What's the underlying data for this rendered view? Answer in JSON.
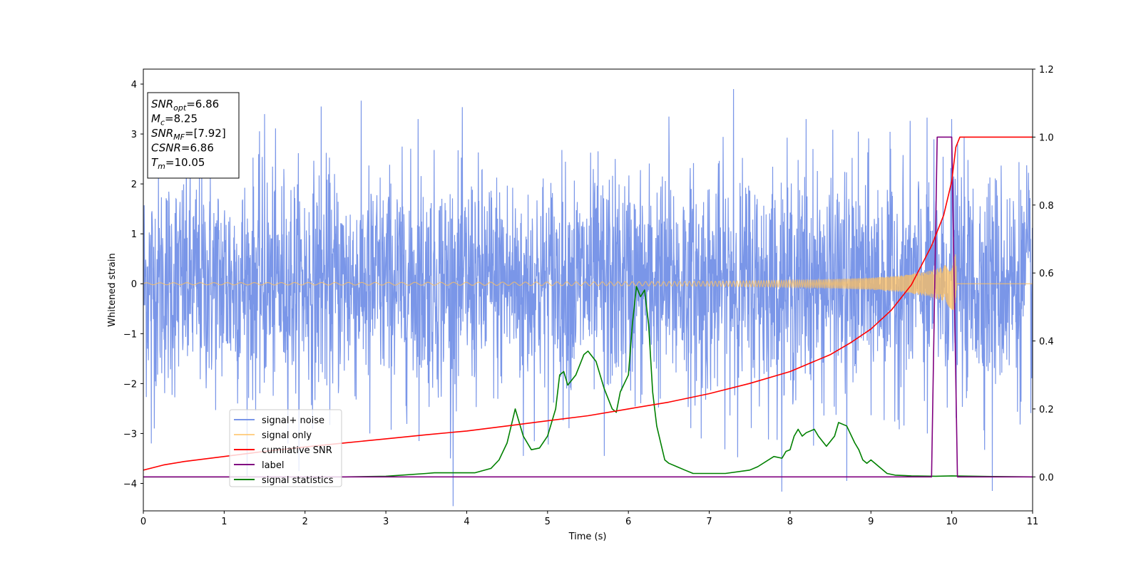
{
  "chart_data": {
    "type": "line",
    "title": "",
    "xlabel": "Time (s)",
    "ylabel": "Whitened strain",
    "xlim": [
      0,
      11
    ],
    "ylim_left": [
      -4.55,
      4.3
    ],
    "ylim_right": [
      -0.1,
      1.2
    ],
    "x_ticks": [
      "0",
      "1",
      "2",
      "3",
      "4",
      "5",
      "6",
      "7",
      "8",
      "9",
      "10",
      "11"
    ],
    "y_left_ticks": [
      "4",
      "3",
      "2",
      "1",
      "0",
      "−1",
      "−2",
      "−3",
      "−4"
    ],
    "y_left_tick_values": [
      4,
      3,
      2,
      1,
      0,
      -1,
      -2,
      -3,
      -4
    ],
    "y_right_ticks": [
      "1.2",
      "1.0",
      "0.8",
      "0.6",
      "0.4",
      "0.2",
      "0.0"
    ],
    "y_right_tick_values": [
      1.2,
      1.0,
      0.8,
      0.6,
      0.4,
      0.2,
      0.0
    ],
    "grid": false,
    "legend_position": "lower-left",
    "info_box": {
      "lines": [
        {
          "main": "SNR",
          "sub": "opt",
          "value": "=6.86"
        },
        {
          "main": "M",
          "sub": "c",
          "value": "=8.25"
        },
        {
          "main": "SNR",
          "sub": "MF",
          "value": "=[7.92]"
        },
        {
          "main": "CSNR",
          "sub": "",
          "value": "=6.86"
        },
        {
          "main": "T",
          "sub": "m",
          "value": "=10.05"
        }
      ]
    },
    "series": [
      {
        "name": "signal+ noise",
        "color": "#7a96e8",
        "axis": "left",
        "description_band": {
          "x": [
            0,
            11
          ],
          "typical_min": -2.3,
          "typical_max": 2.6
        },
        "peaks": [
          {
            "x": 1.5,
            "y": 3.4
          },
          {
            "x": 2.2,
            "y": 3.55
          },
          {
            "x": 3.4,
            "y": 3.3
          },
          {
            "x": 4.7,
            "y": 3.35
          },
          {
            "x": 6.5,
            "y": 3.35
          },
          {
            "x": 7.3,
            "y": 3.9
          },
          {
            "x": 8.2,
            "y": 3.3
          },
          {
            "x": 10.0,
            "y": 3.3
          }
        ],
        "troughs": [
          {
            "x": 0.1,
            "y": -3.2
          },
          {
            "x": 2.8,
            "y": -3.0
          },
          {
            "x": 3.8,
            "y": -3.5
          },
          {
            "x": 4.7,
            "y": -3.45
          },
          {
            "x": 5.7,
            "y": -3.45
          },
          {
            "x": 6.9,
            "y": -3.1
          },
          {
            "x": 8.7,
            "y": -3.95
          },
          {
            "x": 9.7,
            "y": -3.0
          },
          {
            "x": 10.5,
            "y": -4.15
          }
        ]
      },
      {
        "name": "signal only",
        "color": "#ffc060",
        "axis": "left",
        "envelope": {
          "x": [
            0,
            2,
            4,
            6,
            7,
            8,
            8.5,
            9,
            9.4,
            9.7,
            9.9,
            10.05,
            10.06,
            11
          ],
          "amp": [
            0.02,
            0.025,
            0.03,
            0.04,
            0.05,
            0.07,
            0.09,
            0.12,
            0.17,
            0.25,
            0.35,
            0.6,
            0,
            0
          ]
        }
      },
      {
        "name": "cumilative SNR",
        "color": "#ff0000",
        "axis": "right",
        "x": [
          0,
          0.25,
          0.5,
          1,
          1.5,
          2,
          2.5,
          3,
          3.5,
          4,
          4.5,
          5,
          5.5,
          6,
          6.5,
          7,
          7.5,
          8,
          8.25,
          8.5,
          8.75,
          9,
          9.25,
          9.5,
          9.75,
          9.9,
          10.0,
          10.05,
          10.1,
          11
        ],
        "values": [
          0.02,
          0.035,
          0.045,
          0.06,
          0.075,
          0.088,
          0.1,
          0.112,
          0.124,
          0.135,
          0.15,
          0.165,
          0.18,
          0.2,
          0.22,
          0.245,
          0.275,
          0.31,
          0.335,
          0.36,
          0.395,
          0.435,
          0.49,
          0.565,
          0.68,
          0.77,
          0.87,
          0.97,
          1.0,
          1.0
        ]
      },
      {
        "name": "label",
        "color": "#800080",
        "axis": "right",
        "x": [
          0,
          9.75,
          9.82,
          10.0,
          10.07,
          11
        ],
        "values": [
          0.0,
          0.0,
          1.0,
          1.0,
          0.0,
          0.0
        ]
      },
      {
        "name": "signal statistics",
        "color": "#008000",
        "axis": "right",
        "x": [
          0,
          0.5,
          1,
          1.5,
          2,
          2.5,
          3,
          3.5,
          3.6,
          4.0,
          4.1,
          4.3,
          4.4,
          4.5,
          4.55,
          4.6,
          4.65,
          4.7,
          4.8,
          4.9,
          5.0,
          5.1,
          5.15,
          5.2,
          5.25,
          5.35,
          5.45,
          5.5,
          5.6,
          5.7,
          5.8,
          5.85,
          5.9,
          6.0,
          6.05,
          6.1,
          6.15,
          6.2,
          6.25,
          6.3,
          6.35,
          6.4,
          6.45,
          6.5,
          6.6,
          6.7,
          6.8,
          7.0,
          7.2,
          7.5,
          7.6,
          7.8,
          7.9,
          7.95,
          8.0,
          8.05,
          8.1,
          8.15,
          8.2,
          8.3,
          8.35,
          8.45,
          8.55,
          8.6,
          8.7,
          8.8,
          8.85,
          8.9,
          8.95,
          9.0,
          9.1,
          9.2,
          9.3,
          9.5,
          9.8,
          10.0,
          10.5,
          11
        ],
        "values": [
          0.0,
          0.0,
          0.0,
          0.0,
          0.0,
          0.0,
          0.002,
          0.01,
          0.012,
          0.012,
          0.012,
          0.025,
          0.05,
          0.1,
          0.15,
          0.2,
          0.16,
          0.12,
          0.08,
          0.085,
          0.12,
          0.2,
          0.3,
          0.31,
          0.27,
          0.3,
          0.36,
          0.37,
          0.34,
          0.26,
          0.2,
          0.19,
          0.25,
          0.3,
          0.45,
          0.56,
          0.53,
          0.55,
          0.45,
          0.25,
          0.15,
          0.1,
          0.05,
          0.04,
          0.03,
          0.02,
          0.01,
          0.01,
          0.01,
          0.02,
          0.03,
          0.06,
          0.055,
          0.075,
          0.08,
          0.12,
          0.14,
          0.12,
          0.13,
          0.14,
          0.12,
          0.09,
          0.12,
          0.16,
          0.15,
          0.1,
          0.08,
          0.05,
          0.04,
          0.05,
          0.03,
          0.01,
          0.005,
          0.003,
          0.002,
          0.003,
          0.001,
          0.0
        ]
      }
    ]
  }
}
